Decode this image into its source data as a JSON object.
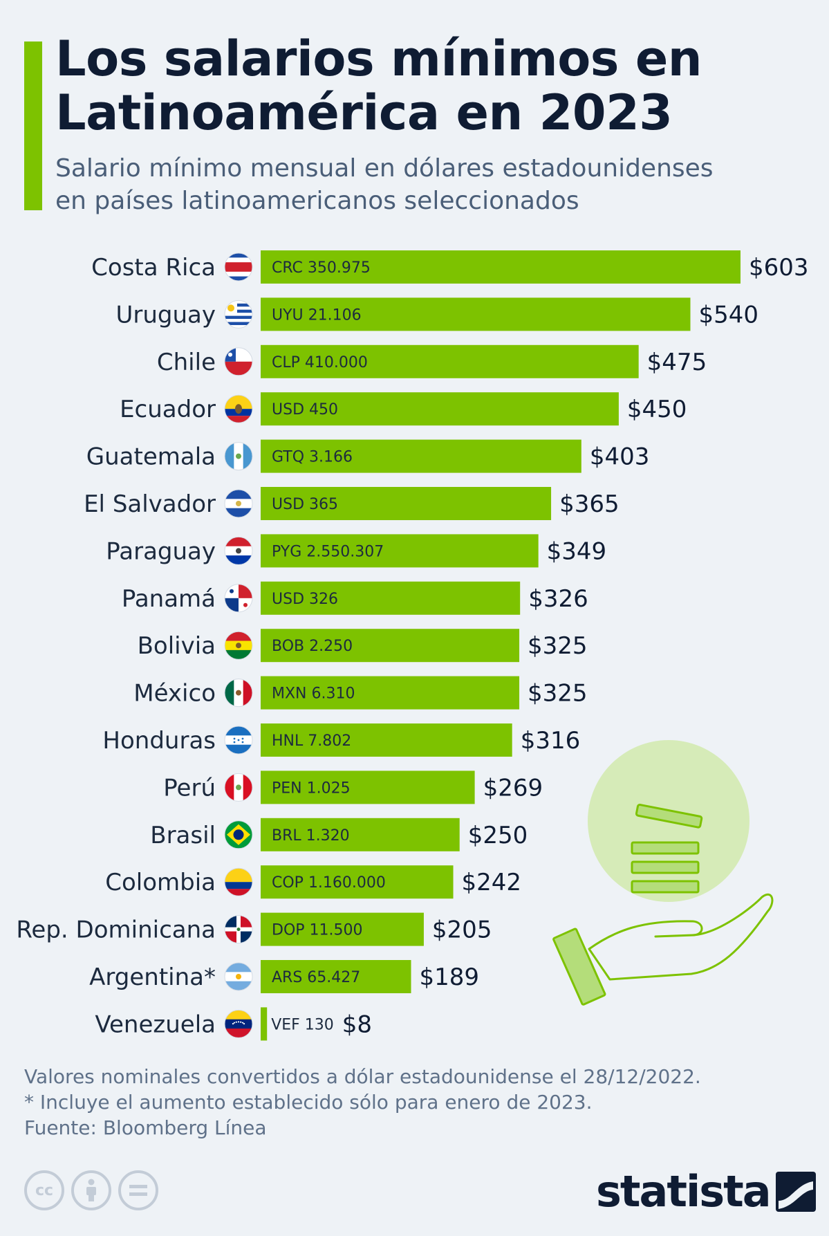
{
  "header": {
    "title_line1": "Los salarios mínimos en",
    "title_line2": "Latinoamérica en 2023",
    "subtitle_line1": "Salario mínimo mensual en dólares estadounidenses",
    "subtitle_line2": "en países latinoamericanos seleccionados"
  },
  "colors": {
    "accent": "#7dc200",
    "bar": "#7dc200",
    "title": "#0f1c33",
    "background": "#eef2f6"
  },
  "chart_data": {
    "type": "bar",
    "orientation": "horizontal",
    "title": "Los salarios mínimos en Latinoamérica en 2023",
    "xlim": [
      0,
      603
    ],
    "grid": false,
    "legend": "none",
    "value_prefix": "$",
    "categories": [
      "Costa Rica",
      "Uruguay",
      "Chile",
      "Ecuador",
      "Guatemala",
      "El Salvador",
      "Paraguay",
      "Panamá",
      "Bolivia",
      "México",
      "Honduras",
      "Perú",
      "Brasil",
      "Colombia",
      "Rep. Dominicana",
      "Argentina*",
      "Venezuela"
    ],
    "values": [
      603,
      540,
      475,
      450,
      403,
      365,
      349,
      326,
      325,
      325,
      316,
      269,
      250,
      242,
      205,
      189,
      8
    ],
    "local_currency_labels": [
      "CRC 350.975",
      "UYU 21.106",
      "CLP 410.000",
      "USD 450",
      "GTQ 3.166",
      "USD 365",
      "PYG 2.550.307",
      "USD 326",
      "BOB 2.250",
      "MXN 6.310",
      "HNL 7.802",
      "PEN 1.025",
      "BRL 1.320",
      "COP 1.160.000",
      "DOP 11.500",
      "ARS 65.427",
      "VEF 130"
    ],
    "flag_icons": [
      "costa-rica-flag-icon",
      "uruguay-flag-icon",
      "chile-flag-icon",
      "ecuador-flag-icon",
      "guatemala-flag-icon",
      "el-salvador-flag-icon",
      "paraguay-flag-icon",
      "panama-flag-icon",
      "bolivia-flag-icon",
      "mexico-flag-icon",
      "honduras-flag-icon",
      "peru-flag-icon",
      "brazil-flag-icon",
      "colombia-flag-icon",
      "dominican-republic-flag-icon",
      "argentina-flag-icon",
      "venezuela-flag-icon"
    ]
  },
  "illustration": {
    "name": "hand-with-coins-icon"
  },
  "footer": {
    "note1": "Valores nominales convertidos a dólar estadounidense el 28/12/2022.",
    "note2": "* Incluye el aumento establecido sólo para enero de 2023.",
    "source": "Fuente: Bloomberg Línea",
    "license_icons": [
      "creative-commons-icon",
      "attribution-icon",
      "no-derivatives-icon"
    ],
    "brand": "statista"
  }
}
